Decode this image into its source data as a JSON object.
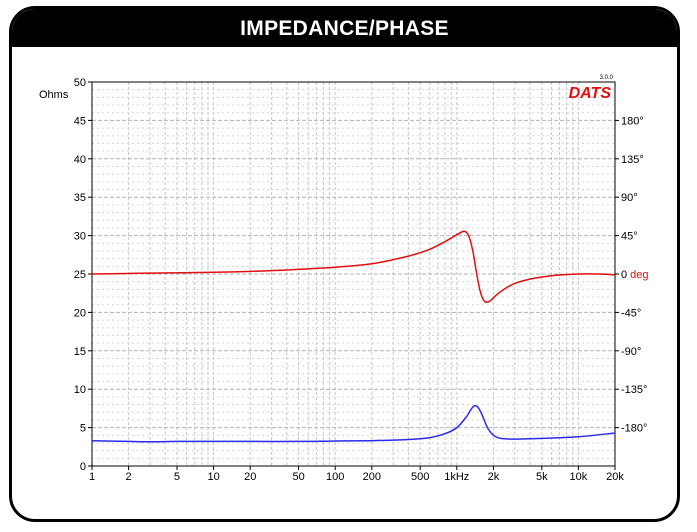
{
  "title": "IMPEDANCE/PHASE",
  "logo_text": "DATS",
  "version": "3.0.0",
  "colors": {
    "impedance": "#2a2af0",
    "phase": "#e01010",
    "logo": "#e01010",
    "ylabel": "#3b3bd6"
  },
  "chart_data": {
    "type": "line",
    "xscale": "log",
    "xlim": [
      1,
      20000
    ],
    "x_ticks": [
      {
        "v": 1,
        "label": "1"
      },
      {
        "v": 2,
        "label": "2"
      },
      {
        "v": 5,
        "label": "5"
      },
      {
        "v": 10,
        "label": "10"
      },
      {
        "v": 20,
        "label": "20"
      },
      {
        "v": 50,
        "label": "50"
      },
      {
        "v": 100,
        "label": "100"
      },
      {
        "v": 200,
        "label": "200"
      },
      {
        "v": 500,
        "label": "500"
      },
      {
        "v": 1000,
        "label": "1kHz"
      },
      {
        "v": 2000,
        "label": "2k"
      },
      {
        "v": 5000,
        "label": "5k"
      },
      {
        "v": 10000,
        "label": "10k"
      },
      {
        "v": 20000,
        "label": "20k"
      }
    ],
    "ylabel": "Ohms",
    "ylim": [
      0,
      50
    ],
    "y_ticks": [
      "0",
      "5",
      "10",
      "15",
      "20",
      "25",
      "30",
      "35",
      "40",
      "45",
      "50"
    ],
    "y2lim": [
      -225,
      225
    ],
    "y2_ticks": [
      {
        "v": 180,
        "label": "180°"
      },
      {
        "v": 135,
        "label": "135°"
      },
      {
        "v": 90,
        "label": "90°"
      },
      {
        "v": 45,
        "label": "45°"
      },
      {
        "v": 0,
        "label": "0",
        "unit": "deg"
      },
      {
        "v": -45,
        "label": "-45°"
      },
      {
        "v": -90,
        "label": "-90°"
      },
      {
        "v": -135,
        "label": "-135°"
      },
      {
        "v": -180,
        "label": "-180°"
      }
    ],
    "series": [
      {
        "axis": "left",
        "x": [
          1,
          2,
          3,
          5,
          10,
          20,
          50,
          100,
          200,
          400,
          600,
          800,
          1000,
          1200,
          1300,
          1400,
          1500,
          1600,
          1700,
          1800,
          2000,
          2300,
          3000,
          5000,
          10000,
          20000
        ],
        "y": [
          3.3,
          3.2,
          3.15,
          3.2,
          3.2,
          3.2,
          3.2,
          3.25,
          3.3,
          3.45,
          3.7,
          4.2,
          5.0,
          6.4,
          7.3,
          7.85,
          7.6,
          6.8,
          5.8,
          4.9,
          4.0,
          3.6,
          3.5,
          3.6,
          3.8,
          4.3
        ]
      },
      {
        "axis": "right",
        "x": [
          1,
          3,
          10,
          30,
          100,
          200,
          400,
          600,
          800,
          1000,
          1150,
          1250,
          1350,
          1450,
          1550,
          1650,
          1750,
          1900,
          2100,
          2500,
          3000,
          4000,
          6000,
          10000,
          15000,
          20000
        ],
        "y": [
          0,
          1,
          2,
          4,
          8,
          12,
          21,
          29,
          38,
          46,
          50,
          45,
          28,
          2,
          -19,
          -30,
          -33,
          -31,
          -25,
          -17,
          -11,
          -6,
          -2,
          0,
          0,
          -1
        ]
      }
    ]
  }
}
